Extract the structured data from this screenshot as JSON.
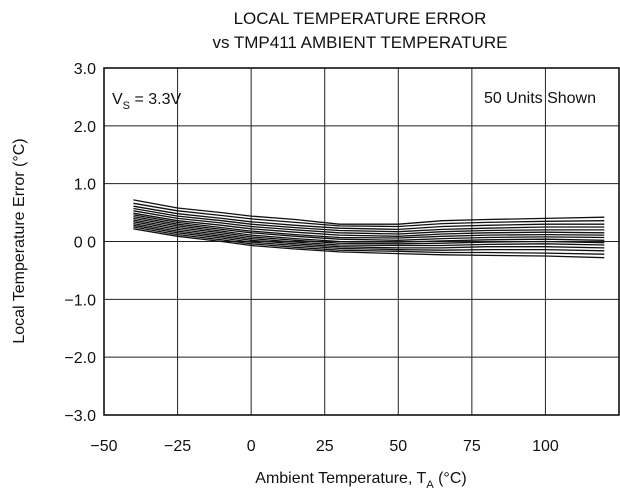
{
  "chart_data": {
    "type": "line",
    "title": [
      "LOCAL TEMPERATURE ERROR",
      "vs TMP411 AMBIENT TEMPERATURE"
    ],
    "xlabel": {
      "main": "Ambient Temperature, T",
      "sub": "A",
      "unit": " (°C)"
    },
    "ylabel": "Local Temperature Error (°C)",
    "xlim": [
      -50,
      125
    ],
    "ylim": [
      -3.0,
      3.0
    ],
    "xticks": [
      -50,
      -25,
      0,
      25,
      50,
      75,
      100
    ],
    "xtick_labels": [
      "−50",
      "−25",
      "0",
      "25",
      "50",
      "75",
      "100"
    ],
    "yticks": [
      3.0,
      2.0,
      1.0,
      0.0,
      -1.0,
      -2.0,
      -3.0
    ],
    "ytick_labels": [
      "3.0",
      "2.0",
      "1.0",
      "0 0",
      "−1.0",
      "−2.0",
      "−3.0"
    ],
    "grid": true,
    "annotations": {
      "supply": {
        "main": "V",
        "sub": "S",
        "rest": " = 3.3V"
      },
      "units": "50 Units Shown"
    },
    "x": [
      -40,
      -25,
      -10,
      0,
      15,
      30,
      50,
      65,
      80,
      100,
      120
    ],
    "series": [
      {
        "values": [
          0.72,
          0.58,
          0.5,
          0.44,
          0.38,
          0.3,
          0.3,
          0.36,
          0.38,
          0.4,
          0.42
        ]
      },
      {
        "values": [
          0.66,
          0.53,
          0.45,
          0.39,
          0.33,
          0.27,
          0.26,
          0.31,
          0.33,
          0.35,
          0.36
        ]
      },
      {
        "values": [
          0.61,
          0.48,
          0.4,
          0.34,
          0.28,
          0.23,
          0.21,
          0.26,
          0.28,
          0.3,
          0.3
        ]
      },
      {
        "values": [
          0.57,
          0.44,
          0.36,
          0.3,
          0.24,
          0.19,
          0.17,
          0.21,
          0.23,
          0.25,
          0.25
        ]
      },
      {
        "values": [
          0.53,
          0.4,
          0.32,
          0.26,
          0.2,
          0.15,
          0.13,
          0.17,
          0.19,
          0.2,
          0.2
        ]
      },
      {
        "values": [
          0.49,
          0.36,
          0.28,
          0.22,
          0.16,
          0.11,
          0.09,
          0.13,
          0.15,
          0.16,
          0.15
        ]
      },
      {
        "values": [
          0.46,
          0.33,
          0.24,
          0.18,
          0.12,
          0.07,
          0.06,
          0.09,
          0.11,
          0.12,
          0.11
        ]
      },
      {
        "values": [
          0.43,
          0.3,
          0.21,
          0.15,
          0.09,
          0.04,
          0.02,
          0.05,
          0.07,
          0.08,
          0.07
        ]
      },
      {
        "values": [
          0.4,
          0.27,
          0.18,
          0.11,
          0.05,
          0.0,
          -0.01,
          0.01,
          0.03,
          0.04,
          0.02
        ]
      },
      {
        "values": [
          0.37,
          0.24,
          0.15,
          0.08,
          0.02,
          -0.03,
          -0.04,
          -0.03,
          -0.01,
          0.0,
          -0.02
        ]
      },
      {
        "values": [
          0.34,
          0.21,
          0.12,
          0.05,
          -0.01,
          -0.06,
          -0.07,
          -0.07,
          -0.05,
          -0.04,
          -0.06
        ]
      },
      {
        "values": [
          0.31,
          0.18,
          0.09,
          0.02,
          -0.04,
          -0.09,
          -0.11,
          -0.11,
          -0.09,
          -0.09,
          -0.11
        ]
      },
      {
        "values": [
          0.28,
          0.15,
          0.06,
          -0.01,
          -0.07,
          -0.12,
          -0.14,
          -0.15,
          -0.14,
          -0.14,
          -0.16
        ]
      },
      {
        "values": [
          0.25,
          0.12,
          0.03,
          -0.04,
          -0.1,
          -0.15,
          -0.17,
          -0.19,
          -0.19,
          -0.2,
          -0.22
        ]
      },
      {
        "values": [
          0.22,
          0.09,
          0.0,
          -0.07,
          -0.13,
          -0.18,
          -0.21,
          -0.23,
          -0.24,
          -0.25,
          -0.28
        ]
      }
    ]
  }
}
